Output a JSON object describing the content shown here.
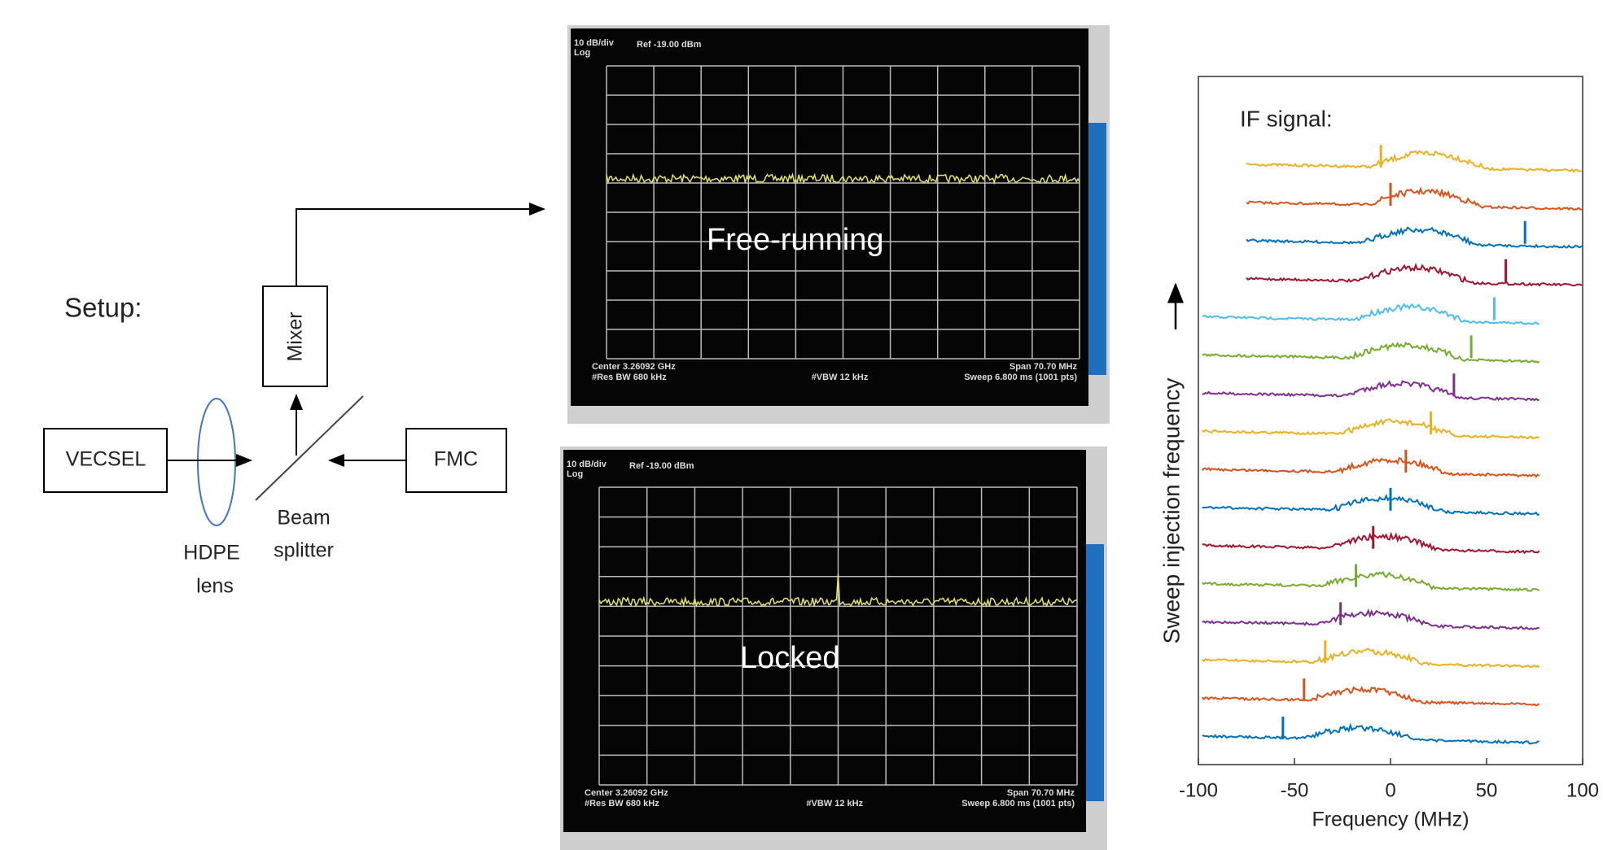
{
  "setup": {
    "title": "Setup:",
    "vecsel": "VECSEL",
    "fmc": "FMC",
    "mixer": "Mixer",
    "beam": "Beam",
    "splitter": "splitter",
    "hdpe": "HDPE",
    "lens": "lens"
  },
  "screens": [
    {
      "overlay": "Free-running",
      "scale": "10 dB/div",
      "log": "Log",
      "ref": "Ref -19.00 dBm",
      "center": "Center 3.26092 GHz",
      "rbw": "#Res BW 680 kHz",
      "vbw": "#VBW 12 kHz",
      "span": "Span 70.70 MHz",
      "sweep": "Sweep 6.800 ms (1001 pts)"
    },
    {
      "overlay": "Locked",
      "scale": "10 dB/div",
      "log": "Log",
      "ref": "Ref -19.00 dBm",
      "center": "Center 3.26092 GHz",
      "rbw": "#Res BW 680 kHz",
      "vbw": "#VBW 12 kHz",
      "span": "Span 70.70 MHz",
      "sweep": "Sweep 6.800 ms (1001 pts)"
    }
  ],
  "chart_data": {
    "type": "waterfall",
    "annotation": "IF signal:",
    "xlabel": "Frequency (MHz)",
    "ylabel": "Sweep injection frequency",
    "xlim": [
      -100,
      100
    ],
    "xticks": [
      -100,
      -50,
      0,
      50,
      100
    ],
    "traces": [
      {
        "color": "#EDB120",
        "range": [
          -75,
          100
        ],
        "spike": -5
      },
      {
        "color": "#D95319",
        "range": [
          -75,
          100
        ],
        "spike": 0
      },
      {
        "color": "#0072BD",
        "range": [
          -75,
          100
        ],
        "spike": 70
      },
      {
        "color": "#A2142F",
        "range": [
          -75,
          100
        ],
        "spike": 60
      },
      {
        "color": "#4DBEEE",
        "range": [
          -98,
          78
        ],
        "spike": 54
      },
      {
        "color": "#77AC30",
        "range": [
          -98,
          78
        ],
        "spike": 42
      },
      {
        "color": "#7E2F8E",
        "range": [
          -98,
          78
        ],
        "spike": 33
      },
      {
        "color": "#EDB120",
        "range": [
          -98,
          78
        ],
        "spike": 21
      },
      {
        "color": "#D95319",
        "range": [
          -98,
          78
        ],
        "spike": 8
      },
      {
        "color": "#0072BD",
        "range": [
          -98,
          78
        ],
        "spike": 0
      },
      {
        "color": "#A2142F",
        "range": [
          -98,
          78
        ],
        "spike": -9
      },
      {
        "color": "#77AC30",
        "range": [
          -98,
          78
        ],
        "spike": -18
      },
      {
        "color": "#7E2F8E",
        "range": [
          -98,
          78
        ],
        "spike": -26
      },
      {
        "color": "#EDB120",
        "range": [
          -98,
          78
        ],
        "spike": -34
      },
      {
        "color": "#D95319",
        "range": [
          -98,
          78
        ],
        "spike": -45
      },
      {
        "color": "#0072BD",
        "range": [
          -98,
          78
        ],
        "spike": -56
      }
    ]
  }
}
